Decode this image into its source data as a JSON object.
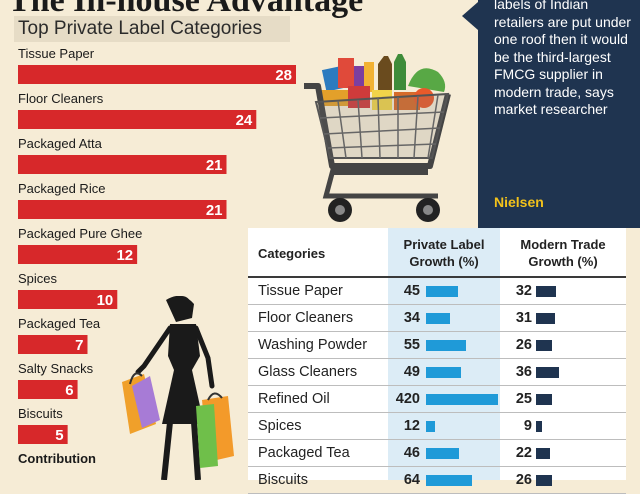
{
  "headline": "The In-house Advantage",
  "subtitle": "Top Private Label Categories",
  "callout": {
    "text": "labels of Indian retailers are put under one roof then it would be the third-largest FMCG supplier in modern trade, says market researcher",
    "source": "Nielsen"
  },
  "chart_data": [
    {
      "type": "bar",
      "orientation": "horizontal",
      "title": "Top Private Label Categories",
      "categories": [
        "Tissue Paper",
        "Floor Cleaners",
        "Packaged Atta",
        "Packaged Rice",
        "Packaged Pure Ghee",
        "Spices",
        "Packaged Tea",
        "Salty Snacks",
        "Biscuits",
        "Contribution"
      ],
      "values": [
        28,
        24,
        21,
        21,
        12,
        10,
        7,
        6,
        5,
        null
      ],
      "data_labels": [
        "28",
        "24",
        "21",
        "21",
        "12",
        "10",
        "7",
        "6",
        "5",
        ""
      ],
      "bar_color": "#d7282a",
      "xlim": [
        0,
        28
      ]
    },
    {
      "type": "table",
      "columns": [
        "Categories",
        "Private Label Growth (%)",
        "Modern Trade Growth (%)"
      ],
      "rows": [
        {
          "category": "Tissue Paper",
          "private_label": 45,
          "modern_trade": 32
        },
        {
          "category": "Floor Cleaners",
          "private_label": 34,
          "modern_trade": 31
        },
        {
          "category": "Washing Powder",
          "private_label": 55,
          "modern_trade": 26
        },
        {
          "category": "Glass Cleaners",
          "private_label": 49,
          "modern_trade": 36
        },
        {
          "category": "Refined Oil",
          "private_label": 420,
          "modern_trade": 25
        },
        {
          "category": "Spices",
          "private_label": 12,
          "modern_trade": 9
        },
        {
          "category": "Packaged Tea",
          "private_label": 46,
          "modern_trade": 22
        },
        {
          "category": "Biscuits",
          "private_label": 64,
          "modern_trade": 26
        }
      ],
      "private_label_bar_color": "#1f9ad8",
      "modern_trade_bar_color": "#1f3450"
    }
  ],
  "icons": [
    "shopping-cart-icon",
    "shopper-silhouette-icon"
  ]
}
